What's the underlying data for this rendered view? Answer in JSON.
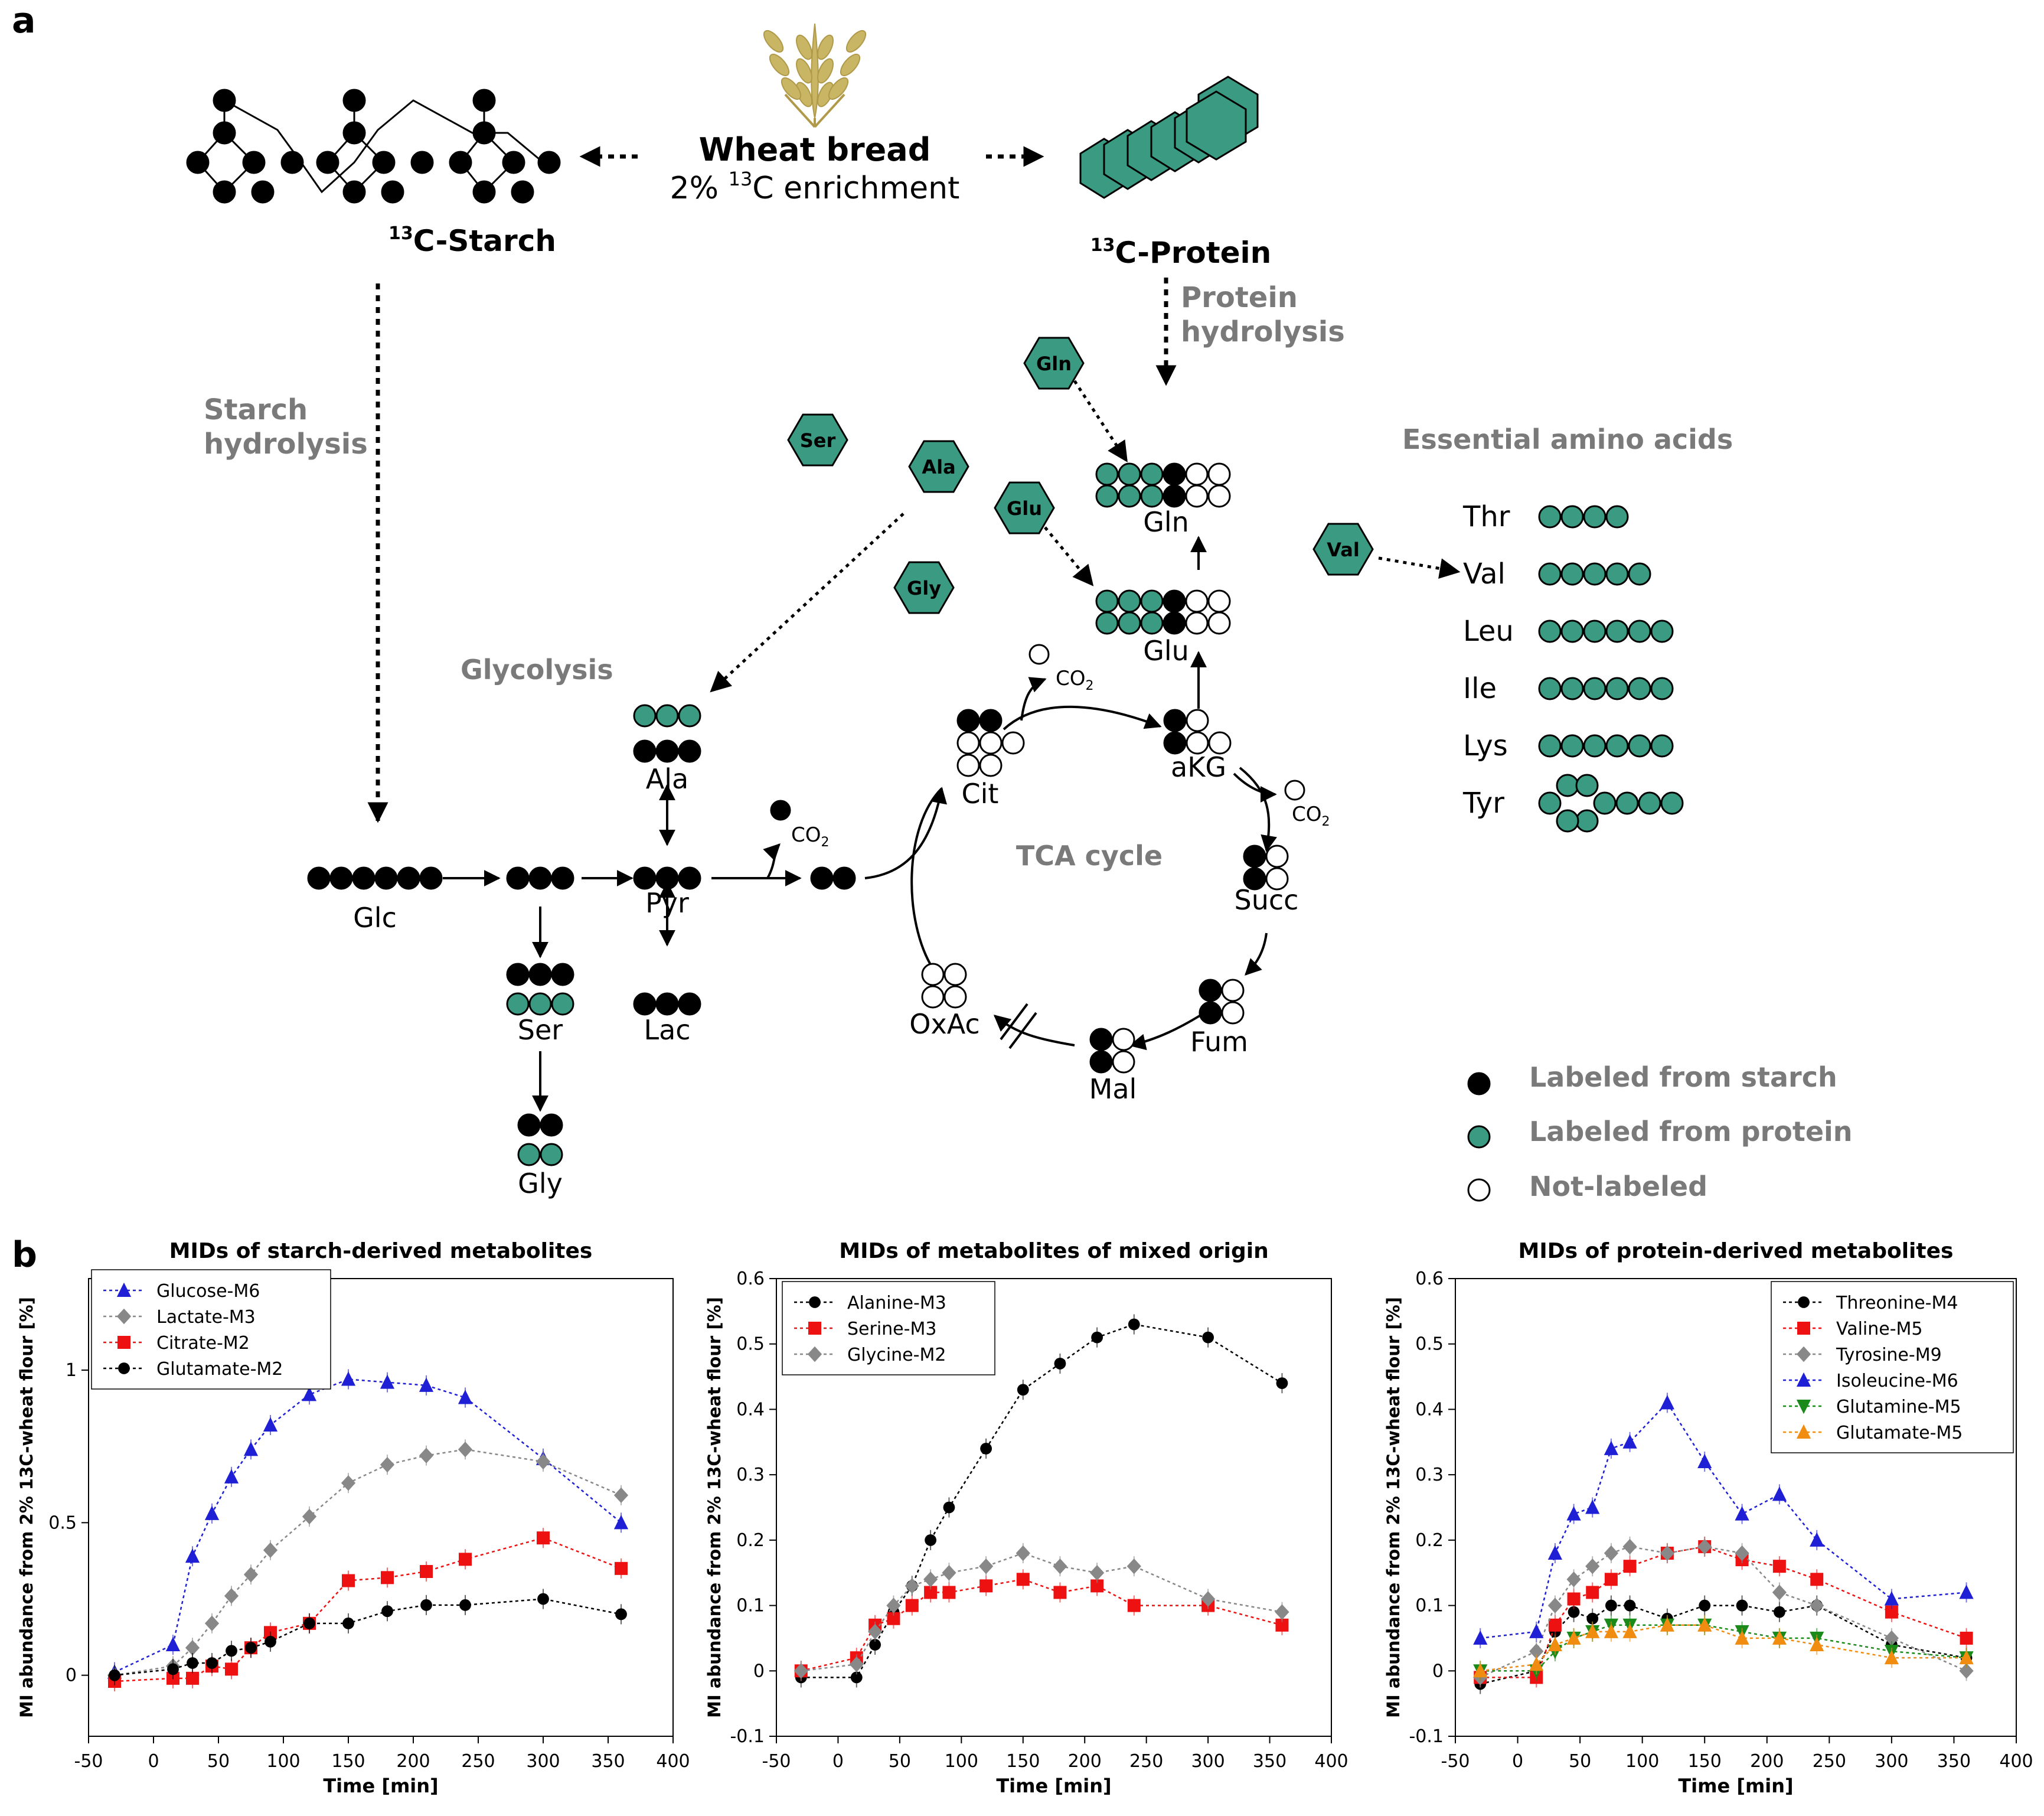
{
  "colors": {
    "starch": "#000000",
    "protein": "#3a9b82",
    "none": "#ffffff",
    "gray_label": "#7a7a7a"
  },
  "panel_a": {
    "label": "a",
    "source": "Wheat bread",
    "enrichment_prefix": "2% ",
    "enrichment_sup": "13",
    "enrichment_suffix": "C enrichment",
    "starch_sup": "13",
    "starch_label": "C-Starch",
    "protein_sup": "13",
    "protein_label": "C-Protein",
    "starch_hydrolysis": [
      "Starch",
      "hydrolysis"
    ],
    "protein_hydrolysis": [
      "Protein",
      "hydrolysis"
    ],
    "glycolysis": "Glycolysis",
    "tca_cycle": "TCA cycle",
    "essential_title": "Essential amino acids",
    "hexagons": [
      "Gln",
      "Ser",
      "Ala",
      "Glu",
      "Gly",
      "Val"
    ],
    "metabolites": {
      "glc": "Glc",
      "pyr": "Pyr",
      "ala": "Ala",
      "ser": "Ser",
      "lac": "Lac",
      "gly": "Gly",
      "cit": "Cit",
      "akg": "aKG",
      "succ": "Succ",
      "fum": "Fum",
      "mal": "Mal",
      "oxac": "OxAc",
      "gln": "Gln",
      "glu": "Glu",
      "co2": "CO",
      "co2_sub": "2"
    },
    "essential": [
      {
        "name": "Thr",
        "carbons": 4
      },
      {
        "name": "Val",
        "carbons": 5
      },
      {
        "name": "Leu",
        "carbons": 6
      },
      {
        "name": "Ile",
        "carbons": 6
      },
      {
        "name": "Lys",
        "carbons": 6
      },
      {
        "name": "Tyr",
        "carbons": 9
      }
    ],
    "legend": [
      "Labeled from starch",
      "Labeled from protein",
      "Not-labeled"
    ]
  },
  "panel_b": {
    "label": "b"
  },
  "chart_data": [
    {
      "type": "line",
      "title": "MIDs of starch-derived metabolites",
      "xlabel": "Time [min]",
      "ylabel": "MI abundance from 2% 13C-wheat flour [%]",
      "xlim": [
        -50,
        400
      ],
      "ylim": [
        -0.2,
        1.3
      ],
      "xticks": [
        -50,
        0,
        50,
        100,
        150,
        200,
        250,
        300,
        350,
        400
      ],
      "yticks": [
        0,
        0.5,
        1
      ],
      "ytick_labels": [
        "0",
        "0.5",
        "1"
      ],
      "series": [
        {
          "name": "Glucose-M6",
          "color": "#1f1fd6",
          "marker": "triangle",
          "x": [
            -30,
            15,
            30,
            45,
            60,
            75,
            90,
            120,
            150,
            180,
            210,
            240,
            300,
            360
          ],
          "y": [
            0.01,
            0.1,
            0.39,
            0.53,
            0.65,
            0.74,
            0.82,
            0.92,
            0.97,
            0.96,
            0.95,
            0.91,
            0.71,
            0.5
          ]
        },
        {
          "name": "Lactate-M3",
          "color": "#888888",
          "marker": "diamond",
          "x": [
            -30,
            15,
            30,
            45,
            60,
            75,
            90,
            120,
            150,
            180,
            210,
            240,
            300,
            360
          ],
          "y": [
            0.0,
            0.03,
            0.09,
            0.17,
            0.26,
            0.33,
            0.41,
            0.52,
            0.63,
            0.69,
            0.72,
            0.74,
            0.7,
            0.59
          ]
        },
        {
          "name": "Citrate-M2",
          "color": "#ee1111",
          "marker": "square",
          "x": [
            -30,
            15,
            30,
            45,
            60,
            75,
            90,
            120,
            150,
            180,
            210,
            240,
            300,
            360
          ],
          "y": [
            -0.02,
            -0.01,
            -0.01,
            0.03,
            0.02,
            0.09,
            0.14,
            0.17,
            0.31,
            0.32,
            0.34,
            0.38,
            0.45,
            0.35
          ]
        },
        {
          "name": "Glutamate-M2",
          "color": "#000000",
          "marker": "circle",
          "x": [
            -30,
            15,
            30,
            45,
            60,
            75,
            90,
            120,
            150,
            180,
            210,
            240,
            300,
            360
          ],
          "y": [
            0.0,
            0.02,
            0.04,
            0.04,
            0.08,
            0.09,
            0.11,
            0.17,
            0.17,
            0.21,
            0.23,
            0.23,
            0.25,
            0.2
          ]
        }
      ]
    },
    {
      "type": "line",
      "title": "MIDs of metabolites of mixed origin",
      "xlabel": "Time [min]",
      "ylabel": "MI abundance from 2% 13C-wheat flour [%]",
      "xlim": [
        -50,
        400
      ],
      "ylim": [
        -0.1,
        0.6
      ],
      "xticks": [
        -50,
        0,
        50,
        100,
        150,
        200,
        250,
        300,
        350,
        400
      ],
      "yticks": [
        -0.1,
        0,
        0.1,
        0.2,
        0.3,
        0.4,
        0.5,
        0.6
      ],
      "ytick_labels": [
        "-0.1",
        "0",
        "0.1",
        "0.2",
        "0.3",
        "0.4",
        "0.5",
        "0.6"
      ],
      "series": [
        {
          "name": "Alanine-M3",
          "color": "#000000",
          "marker": "circle",
          "x": [
            -30,
            15,
            30,
            45,
            60,
            75,
            90,
            120,
            150,
            180,
            210,
            240,
            300,
            360
          ],
          "y": [
            -0.01,
            -0.01,
            0.04,
            0.09,
            0.13,
            0.2,
            0.25,
            0.34,
            0.43,
            0.47,
            0.51,
            0.53,
            0.51,
            0.44
          ]
        },
        {
          "name": "Serine-M3",
          "color": "#ee1111",
          "marker": "square",
          "x": [
            -30,
            15,
            30,
            45,
            60,
            75,
            90,
            120,
            150,
            180,
            210,
            240,
            300,
            360
          ],
          "y": [
            0.0,
            0.02,
            0.07,
            0.08,
            0.1,
            0.12,
            0.12,
            0.13,
            0.14,
            0.12,
            0.13,
            0.1,
            0.1,
            0.07
          ]
        },
        {
          "name": "Glycine-M2",
          "color": "#888888",
          "marker": "diamond",
          "x": [
            -30,
            15,
            30,
            45,
            60,
            75,
            90,
            120,
            150,
            180,
            210,
            240,
            300,
            360
          ],
          "y": [
            0.0,
            0.01,
            0.06,
            0.1,
            0.13,
            0.14,
            0.15,
            0.16,
            0.18,
            0.16,
            0.15,
            0.16,
            0.11,
            0.09
          ]
        }
      ]
    },
    {
      "type": "line",
      "title": "MIDs of protein-derived metabolites",
      "xlabel": "Time [min]",
      "ylabel": "MI abundance from 2% 13C-wheat flour [%]",
      "xlim": [
        -50,
        400
      ],
      "ylim": [
        -0.1,
        0.6
      ],
      "xticks": [
        -50,
        0,
        50,
        100,
        150,
        200,
        250,
        300,
        350,
        400
      ],
      "yticks": [
        -0.1,
        0,
        0.1,
        0.2,
        0.3,
        0.4,
        0.5,
        0.6
      ],
      "ytick_labels": [
        "-0.1",
        "0",
        "0.1",
        "0.2",
        "0.3",
        "0.4",
        "0.5",
        "0.6"
      ],
      "series": [
        {
          "name": "Threonine-M4",
          "color": "#000000",
          "marker": "circle",
          "x": [
            -30,
            15,
            30,
            45,
            60,
            75,
            90,
            120,
            150,
            180,
            210,
            240,
            300,
            360
          ],
          "y": [
            -0.02,
            0.0,
            0.06,
            0.09,
            0.08,
            0.1,
            0.1,
            0.08,
            0.1,
            0.1,
            0.09,
            0.1,
            0.04,
            0.02
          ]
        },
        {
          "name": "Valine-M5",
          "color": "#ee1111",
          "marker": "square",
          "x": [
            -30,
            15,
            30,
            45,
            60,
            75,
            90,
            120,
            150,
            180,
            210,
            240,
            300,
            360
          ],
          "y": [
            -0.01,
            -0.01,
            0.07,
            0.11,
            0.12,
            0.14,
            0.16,
            0.18,
            0.19,
            0.17,
            0.16,
            0.14,
            0.09,
            0.05
          ]
        },
        {
          "name": "Tyrosine-M9",
          "color": "#888888",
          "marker": "diamond",
          "x": [
            -30,
            15,
            30,
            45,
            60,
            75,
            90,
            120,
            150,
            180,
            210,
            240,
            300,
            360
          ],
          "y": [
            -0.01,
            0.03,
            0.1,
            0.14,
            0.16,
            0.18,
            0.19,
            0.18,
            0.19,
            0.18,
            0.12,
            0.1,
            0.05,
            0.0
          ]
        },
        {
          "name": "Isoleucine-M6",
          "color": "#1f1fd6",
          "marker": "triangle",
          "x": [
            -30,
            15,
            30,
            45,
            60,
            75,
            90,
            120,
            150,
            180,
            210,
            240,
            300,
            360
          ],
          "y": [
            0.05,
            0.06,
            0.18,
            0.24,
            0.25,
            0.34,
            0.35,
            0.41,
            0.32,
            0.24,
            0.27,
            0.2,
            0.11,
            0.12
          ]
        },
        {
          "name": "Glutamine-M5",
          "color": "#1a8a1a",
          "marker": "triangle-down",
          "x": [
            -30,
            15,
            30,
            45,
            60,
            75,
            90,
            120,
            150,
            180,
            210,
            240,
            300,
            360
          ],
          "y": [
            0.0,
            0.0,
            0.03,
            0.05,
            0.06,
            0.07,
            0.07,
            0.07,
            0.07,
            0.06,
            0.05,
            0.05,
            0.03,
            0.02
          ]
        },
        {
          "name": "Glutamate-M5",
          "color": "#f08c10",
          "marker": "triangle",
          "x": [
            -30,
            15,
            30,
            45,
            60,
            75,
            90,
            120,
            150,
            180,
            210,
            240,
            300,
            360
          ],
          "y": [
            0.0,
            0.01,
            0.04,
            0.05,
            0.06,
            0.06,
            0.06,
            0.07,
            0.07,
            0.05,
            0.05,
            0.04,
            0.02,
            0.02
          ]
        }
      ]
    }
  ]
}
